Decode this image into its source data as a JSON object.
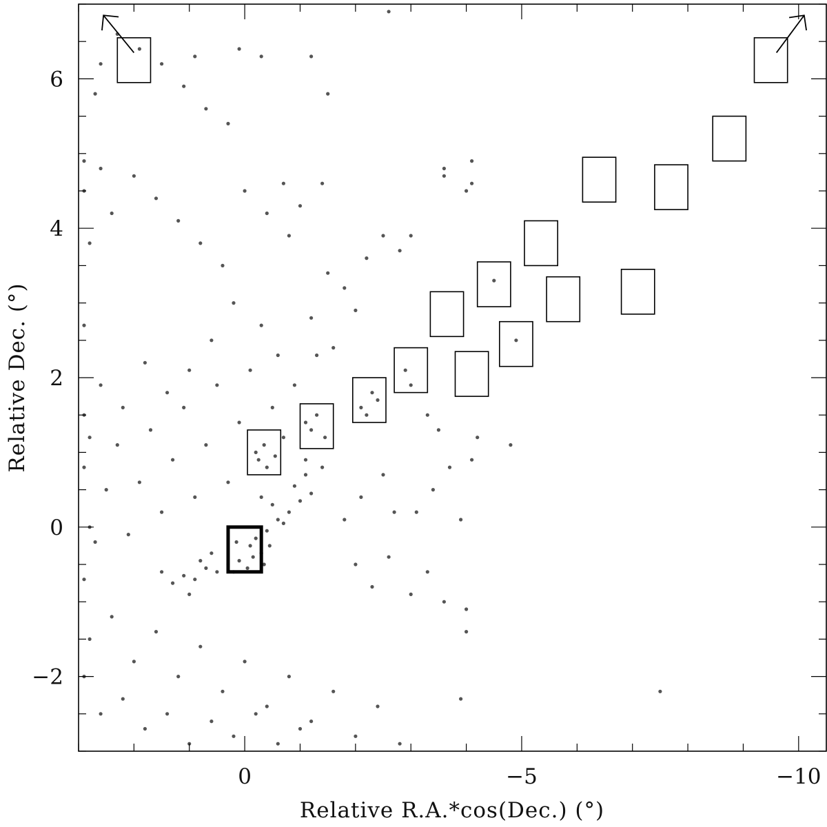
{
  "chart_data": {
    "type": "scatter",
    "xlabel": "Relative R.A.*cos(Dec.) (°)",
    "ylabel": "Relative Dec. (°)",
    "xlim": [
      3.0,
      -10.5
    ],
    "ylim": [
      -3.0,
      7.0
    ],
    "x_ticks": [
      0,
      -5,
      -10
    ],
    "x_tick_labels": [
      "0",
      "−5",
      "−10"
    ],
    "y_ticks": [
      -2,
      0,
      2,
      4,
      6
    ],
    "y_tick_labels": [
      "−2",
      "0",
      "2",
      "4",
      "6"
    ],
    "grid": false,
    "point_color": "#555555",
    "fields": [
      {
        "ra": [
          0.3,
          -0.3
        ],
        "dec": [
          -0.6,
          0.0
        ],
        "highlight": true
      },
      {
        "ra": [
          -0.05,
          -0.65
        ],
        "dec": [
          0.7,
          1.3
        ],
        "highlight": false
      },
      {
        "ra": [
          -1.0,
          -1.6
        ],
        "dec": [
          1.05,
          1.65
        ],
        "highlight": false
      },
      {
        "ra": [
          -1.95,
          -2.55
        ],
        "dec": [
          1.4,
          2.0
        ],
        "highlight": false
      },
      {
        "ra": [
          -2.7,
          -3.3
        ],
        "dec": [
          1.8,
          2.4
        ],
        "highlight": false
      },
      {
        "ra": [
          -3.35,
          -3.95
        ],
        "dec": [
          2.55,
          3.15
        ],
        "highlight": false
      },
      {
        "ra": [
          -3.8,
          -4.4
        ],
        "dec": [
          1.75,
          2.35
        ],
        "highlight": false
      },
      {
        "ra": [
          -4.2,
          -4.8
        ],
        "dec": [
          2.95,
          3.55
        ],
        "highlight": false
      },
      {
        "ra": [
          -4.6,
          -5.2
        ],
        "dec": [
          2.15,
          2.75
        ],
        "highlight": false
      },
      {
        "ra": [
          -5.05,
          -5.65
        ],
        "dec": [
          3.5,
          4.1
        ],
        "highlight": false
      },
      {
        "ra": [
          -5.45,
          -6.05
        ],
        "dec": [
          2.75,
          3.35
        ],
        "highlight": false
      },
      {
        "ra": [
          -6.1,
          -6.7
        ],
        "dec": [
          4.35,
          4.95
        ],
        "highlight": false
      },
      {
        "ra": [
          -6.8,
          -7.4
        ],
        "dec": [
          2.85,
          3.45
        ],
        "highlight": false
      },
      {
        "ra": [
          -7.4,
          -8.0
        ],
        "dec": [
          4.25,
          4.85
        ],
        "highlight": false
      },
      {
        "ra": [
          -8.45,
          -9.05
        ],
        "dec": [
          4.9,
          5.5
        ],
        "highlight": false
      },
      {
        "ra": [
          -9.2,
          -9.8
        ],
        "dec": [
          5.95,
          6.55
        ],
        "highlight": false
      },
      {
        "ra": [
          2.3,
          1.7
        ],
        "dec": [
          5.95,
          6.55
        ],
        "highlight": false
      }
    ],
    "arrows": [
      {
        "from": [
          2.0,
          6.35
        ],
        "to": [
          2.55,
          6.85
        ]
      },
      {
        "from": [
          -9.6,
          6.35
        ],
        "to": [
          -10.1,
          6.85
        ]
      }
    ],
    "series": [
      {
        "type": "scatter",
        "points": [
          [
            -0.3,
            -0.35
          ],
          [
            -0.1,
            -0.25
          ],
          [
            0.1,
            -0.45
          ],
          [
            -0.2,
            -0.15
          ],
          [
            -0.4,
            -0.05
          ],
          [
            -0.6,
            0.1
          ],
          [
            -0.8,
            0.2
          ],
          [
            -1.0,
            0.35
          ],
          [
            -1.2,
            0.45
          ],
          [
            -0.5,
            0.3
          ],
          [
            -0.7,
            0.05
          ],
          [
            -0.9,
            0.55
          ],
          [
            -1.1,
            0.7
          ],
          [
            -1.4,
            0.8
          ],
          [
            0.3,
            -0.5
          ],
          [
            0.5,
            -0.6
          ],
          [
            0.7,
            -0.55
          ],
          [
            0.9,
            -0.7
          ],
          [
            1.1,
            -0.65
          ],
          [
            1.3,
            -0.75
          ],
          [
            0.6,
            -0.35
          ],
          [
            0.8,
            -0.45
          ],
          [
            1.0,
            -0.9
          ],
          [
            1.5,
            -0.6
          ],
          [
            -0.05,
            -0.55
          ],
          [
            0.15,
            -0.2
          ],
          [
            -0.35,
            -0.5
          ],
          [
            -0.15,
            -0.4
          ],
          [
            0.2,
            -0.6
          ],
          [
            -0.45,
            -0.25
          ],
          [
            -0.25,
            0.9
          ],
          [
            -0.35,
            1.1
          ],
          [
            -0.4,
            0.8
          ],
          [
            -0.2,
            1.0
          ],
          [
            -0.55,
            0.95
          ],
          [
            -1.2,
            1.3
          ],
          [
            -1.3,
            1.5
          ],
          [
            -1.45,
            1.2
          ],
          [
            -1.1,
            1.4
          ],
          [
            -2.1,
            1.6
          ],
          [
            -2.3,
            1.8
          ],
          [
            -2.2,
            1.5
          ],
          [
            -2.4,
            1.7
          ],
          [
            -2.9,
            2.1
          ],
          [
            -3.0,
            1.9
          ],
          [
            -4.5,
            3.3
          ],
          [
            -4.9,
            2.5
          ],
          [
            -1.5,
            3.4
          ],
          [
            -1.8,
            3.2
          ],
          [
            -2.2,
            3.6
          ],
          [
            -2.5,
            3.9
          ],
          [
            -2.8,
            3.7
          ],
          [
            -3.0,
            3.9
          ],
          [
            -1.2,
            2.8
          ],
          [
            -1.6,
            2.4
          ],
          [
            -2.0,
            2.9
          ],
          [
            -0.6,
            2.3
          ],
          [
            -0.3,
            2.7
          ],
          [
            0.2,
            3.0
          ],
          [
            0.6,
            2.5
          ],
          [
            1.0,
            2.1
          ],
          [
            1.4,
            1.8
          ],
          [
            1.8,
            2.2
          ],
          [
            2.2,
            1.6
          ],
          [
            2.6,
            1.9
          ],
          [
            2.8,
            1.2
          ],
          [
            0.4,
            3.5
          ],
          [
            0.8,
            3.8
          ],
          [
            1.2,
            4.1
          ],
          [
            1.6,
            4.4
          ],
          [
            2.0,
            4.7
          ],
          [
            2.4,
            4.2
          ],
          [
            2.6,
            4.8
          ],
          [
            0.0,
            4.5
          ],
          [
            -0.4,
            4.2
          ],
          [
            -0.8,
            3.9
          ],
          [
            -0.7,
            4.6
          ],
          [
            -1.0,
            4.3
          ],
          [
            -1.4,
            4.6
          ],
          [
            0.3,
            5.4
          ],
          [
            0.7,
            5.6
          ],
          [
            1.1,
            5.9
          ],
          [
            1.5,
            6.2
          ],
          [
            1.9,
            6.4
          ],
          [
            2.3,
            6.6
          ],
          [
            2.6,
            6.2
          ],
          [
            2.7,
            5.8
          ],
          [
            0.9,
            6.3
          ],
          [
            0.1,
            6.4
          ],
          [
            -0.3,
            6.3
          ],
          [
            -1.5,
            5.8
          ],
          [
            -1.2,
            6.3
          ],
          [
            -2.6,
            6.9
          ],
          [
            2.8,
            -1.5
          ],
          [
            2.4,
            -1.2
          ],
          [
            2.0,
            -1.8
          ],
          [
            1.6,
            -1.4
          ],
          [
            1.2,
            -2.0
          ],
          [
            0.8,
            -1.6
          ],
          [
            0.4,
            -2.2
          ],
          [
            0.0,
            -1.8
          ],
          [
            -0.4,
            -2.4
          ],
          [
            -0.8,
            -2.0
          ],
          [
            -1.2,
            -2.6
          ],
          [
            -1.6,
            -2.2
          ],
          [
            -2.0,
            -2.8
          ],
          [
            -2.4,
            -2.4
          ],
          [
            -2.8,
            -2.9
          ],
          [
            2.6,
            -2.5
          ],
          [
            2.2,
            -2.3
          ],
          [
            1.8,
            -2.7
          ],
          [
            1.4,
            -2.5
          ],
          [
            1.0,
            -2.9
          ],
          [
            0.6,
            -2.6
          ],
          [
            0.2,
            -2.8
          ],
          [
            -0.2,
            -2.5
          ],
          [
            -0.6,
            -2.9
          ],
          [
            -1.0,
            -2.7
          ],
          [
            -2.0,
            -0.5
          ],
          [
            -2.3,
            -0.8
          ],
          [
            -2.6,
            -0.4
          ],
          [
            -3.0,
            -0.9
          ],
          [
            -3.3,
            -0.6
          ],
          [
            -3.6,
            -1.0
          ],
          [
            -3.1,
            0.2
          ],
          [
            -3.4,
            0.5
          ],
          [
            -3.7,
            0.8
          ],
          [
            -3.9,
            0.1
          ],
          [
            -4.0,
            -1.1
          ],
          [
            -1.8,
            0.1
          ],
          [
            -2.1,
            0.4
          ],
          [
            -2.5,
            0.7
          ],
          [
            -2.7,
            0.2
          ],
          [
            -4.2,
            1.2
          ],
          [
            -4.8,
            1.1
          ],
          [
            -4.1,
            0.9
          ],
          [
            -3.9,
            -2.3
          ],
          [
            -4.0,
            -1.4
          ],
          [
            -7.5,
            -2.2
          ],
          [
            -4.1,
            4.6
          ],
          [
            -4.0,
            4.5
          ],
          [
            -4.1,
            4.9
          ],
          [
            -3.6,
            4.7
          ],
          [
            -3.6,
            4.8
          ],
          [
            -3.3,
            1.5
          ],
          [
            -3.5,
            1.3
          ],
          [
            2.9,
            4.9
          ],
          [
            2.9,
            4.5
          ],
          [
            2.8,
            3.8
          ],
          [
            2.9,
            2.7
          ],
          [
            2.9,
            1.5
          ],
          [
            2.9,
            0.8
          ],
          [
            2.8,
            0.0
          ],
          [
            2.9,
            -0.7
          ],
          [
            2.9,
            -2.0
          ],
          [
            2.7,
            -0.2
          ],
          [
            2.5,
            0.5
          ],
          [
            2.3,
            1.1
          ],
          [
            2.1,
            -0.1
          ],
          [
            1.9,
            0.6
          ],
          [
            1.7,
            1.3
          ],
          [
            1.5,
            0.2
          ],
          [
            1.3,
            0.9
          ],
          [
            1.1,
            1.6
          ],
          [
            0.9,
            0.4
          ],
          [
            0.7,
            1.1
          ],
          [
            0.5,
            1.9
          ],
          [
            0.3,
            0.6
          ],
          [
            0.1,
            1.4
          ],
          [
            -0.1,
            2.1
          ],
          [
            -0.3,
            0.4
          ],
          [
            -0.5,
            1.6
          ],
          [
            -0.7,
            1.2
          ],
          [
            -0.9,
            1.9
          ],
          [
            -1.1,
            0.9
          ],
          [
            -1.3,
            2.3
          ]
        ]
      }
    ]
  }
}
